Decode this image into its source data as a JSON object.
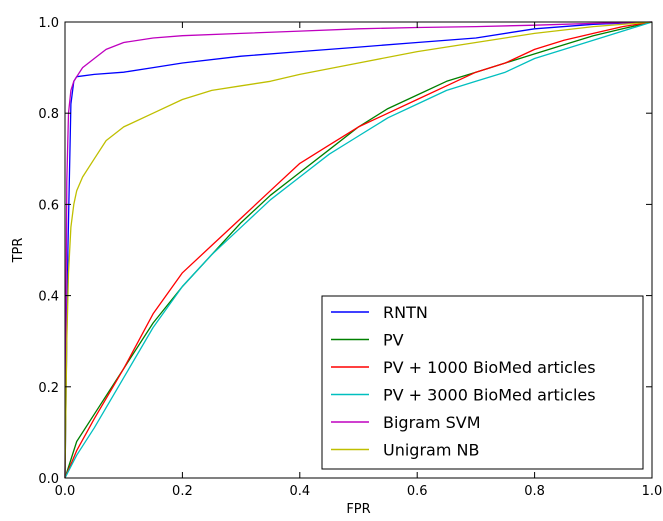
{
  "chart_data": {
    "type": "line",
    "title": "",
    "xlabel": "FPR",
    "ylabel": "TPR",
    "xlim": [
      0.0,
      1.0
    ],
    "ylim": [
      0.0,
      1.0
    ],
    "grid": false,
    "legend_position": "lower-right",
    "x_ticks": [
      {
        "value": 0.0,
        "label": "0.0"
      },
      {
        "value": 0.2,
        "label": "0.2"
      },
      {
        "value": 0.4,
        "label": "0.4"
      },
      {
        "value": 0.6,
        "label": "0.6"
      },
      {
        "value": 0.8,
        "label": "0.8"
      },
      {
        "value": 1.0,
        "label": "1.0"
      }
    ],
    "y_ticks": [
      {
        "value": 0.0,
        "label": "0.0"
      },
      {
        "value": 0.2,
        "label": "0.2"
      },
      {
        "value": 0.4,
        "label": "0.4"
      },
      {
        "value": 0.6,
        "label": "0.6"
      },
      {
        "value": 0.8,
        "label": "0.8"
      },
      {
        "value": 1.0,
        "label": "1.0"
      }
    ],
    "series": [
      {
        "name": "RNTN",
        "color": "#0000ff",
        "x": [
          0.0,
          0.005,
          0.01,
          0.015,
          0.02,
          0.05,
          0.1,
          0.15,
          0.2,
          0.3,
          0.4,
          0.5,
          0.6,
          0.7,
          0.8,
          0.9,
          1.0
        ],
        "y": [
          0.0,
          0.5,
          0.82,
          0.87,
          0.88,
          0.885,
          0.89,
          0.9,
          0.91,
          0.925,
          0.935,
          0.945,
          0.955,
          0.965,
          0.985,
          0.995,
          1.0
        ]
      },
      {
        "name": "PV",
        "color": "#008000",
        "x": [
          0.0,
          0.02,
          0.05,
          0.1,
          0.15,
          0.2,
          0.25,
          0.3,
          0.35,
          0.4,
          0.45,
          0.5,
          0.55,
          0.6,
          0.65,
          0.7,
          0.75,
          0.8,
          0.85,
          0.9,
          0.95,
          1.0
        ],
        "y": [
          0.0,
          0.08,
          0.14,
          0.24,
          0.34,
          0.42,
          0.49,
          0.56,
          0.62,
          0.67,
          0.72,
          0.77,
          0.81,
          0.84,
          0.87,
          0.89,
          0.91,
          0.93,
          0.95,
          0.97,
          0.985,
          1.0
        ]
      },
      {
        "name": "PV + 1000 BioMed articles",
        "color": "#ff0000",
        "x": [
          0.0,
          0.02,
          0.05,
          0.1,
          0.15,
          0.2,
          0.25,
          0.3,
          0.35,
          0.4,
          0.45,
          0.5,
          0.55,
          0.6,
          0.65,
          0.7,
          0.75,
          0.8,
          0.85,
          0.9,
          0.95,
          1.0
        ],
        "y": [
          0.0,
          0.06,
          0.13,
          0.24,
          0.36,
          0.45,
          0.51,
          0.57,
          0.63,
          0.69,
          0.73,
          0.77,
          0.8,
          0.83,
          0.86,
          0.89,
          0.91,
          0.94,
          0.96,
          0.975,
          0.99,
          1.0
        ]
      },
      {
        "name": "PV + 3000 BioMed articles",
        "color": "#00bfbf",
        "x": [
          0.0,
          0.02,
          0.05,
          0.1,
          0.15,
          0.2,
          0.25,
          0.3,
          0.35,
          0.4,
          0.45,
          0.5,
          0.55,
          0.6,
          0.65,
          0.7,
          0.75,
          0.8,
          0.85,
          0.9,
          0.95,
          1.0
        ],
        "y": [
          0.0,
          0.05,
          0.11,
          0.22,
          0.33,
          0.42,
          0.49,
          0.55,
          0.61,
          0.66,
          0.71,
          0.75,
          0.79,
          0.82,
          0.85,
          0.87,
          0.89,
          0.92,
          0.94,
          0.96,
          0.98,
          1.0
        ]
      },
      {
        "name": "Bigram SVM",
        "color": "#bf00bf",
        "x": [
          0.0,
          0.003,
          0.006,
          0.01,
          0.015,
          0.02,
          0.03,
          0.05,
          0.07,
          0.1,
          0.15,
          0.2,
          0.3,
          0.4,
          0.5,
          0.6,
          0.7,
          0.8,
          0.9,
          1.0
        ],
        "y": [
          0.0,
          0.65,
          0.8,
          0.85,
          0.87,
          0.88,
          0.9,
          0.92,
          0.94,
          0.955,
          0.965,
          0.97,
          0.975,
          0.98,
          0.985,
          0.988,
          0.99,
          0.993,
          0.997,
          1.0
        ]
      },
      {
        "name": "Unigram NB",
        "color": "#bfbf00",
        "x": [
          0.0,
          0.003,
          0.006,
          0.01,
          0.015,
          0.02,
          0.03,
          0.05,
          0.07,
          0.1,
          0.15,
          0.2,
          0.25,
          0.3,
          0.35,
          0.4,
          0.5,
          0.6,
          0.7,
          0.8,
          0.9,
          1.0
        ],
        "y": [
          0.0,
          0.3,
          0.45,
          0.55,
          0.6,
          0.63,
          0.66,
          0.7,
          0.74,
          0.77,
          0.8,
          0.83,
          0.85,
          0.86,
          0.87,
          0.885,
          0.91,
          0.935,
          0.955,
          0.975,
          0.99,
          1.0
        ]
      }
    ]
  }
}
